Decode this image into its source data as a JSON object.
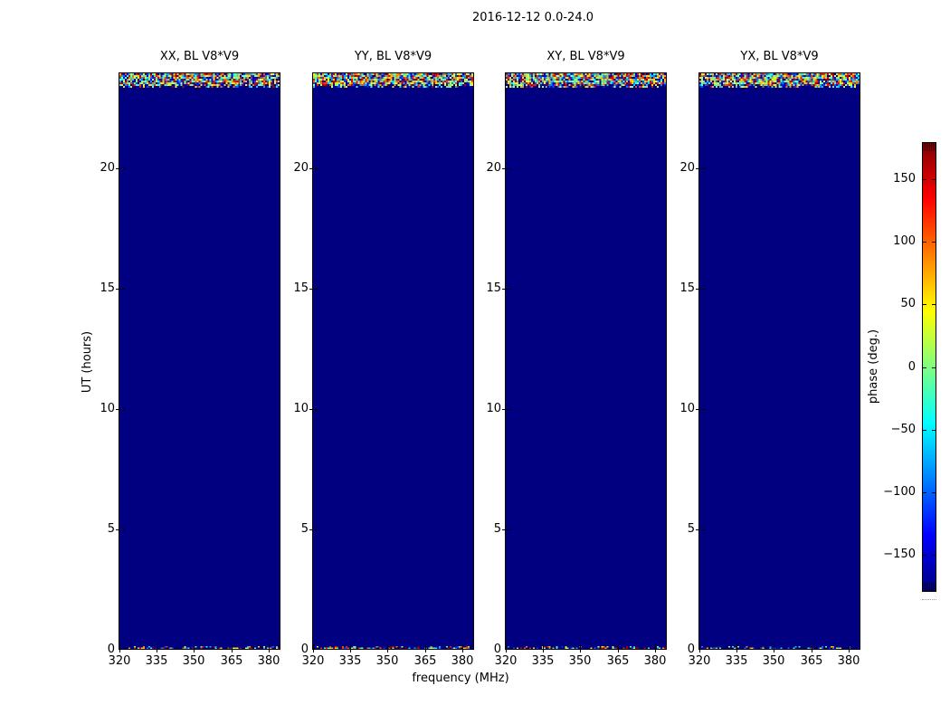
{
  "figure": {
    "title": "2016-12-12 0.0-24.0",
    "xlabel": "frequency (MHz)",
    "ylabel": "UT (hours)",
    "background": "#ffffff"
  },
  "panels": [
    {
      "title": "XX, BL V8*V9"
    },
    {
      "title": "YY, BL V8*V9"
    },
    {
      "title": "XY, BL V8*V9"
    },
    {
      "title": "YX, BL V8*V9"
    }
  ],
  "axes": {
    "x_tick_labels": [
      "320",
      "335",
      "350",
      "365",
      "380"
    ],
    "y_tick_labels": [
      "20",
      "15",
      "10",
      "5",
      "0"
    ]
  },
  "colorbar": {
    "label": "phase (deg.)",
    "tick_labels": [
      "150",
      "100",
      "50",
      "0",
      "−50",
      "−100",
      "−150"
    ],
    "colormap": "jet",
    "min_color": "#000080",
    "max_color": "#800000"
  },
  "chart_data": {
    "type": "heatmap",
    "title": "2016-12-12 0.0-24.0",
    "xlabel": "frequency (MHz)",
    "ylabel": "UT (hours)",
    "zlabel": "phase (deg.)",
    "xlim": [
      320,
      385
    ],
    "ylim": [
      0,
      24
    ],
    "zlim": [
      -180,
      180
    ],
    "x_ticks": [
      320,
      335,
      350,
      365,
      380
    ],
    "y_ticks": [
      0,
      5,
      10,
      15,
      20
    ],
    "colorbar_ticks": [
      150,
      100,
      50,
      0,
      -50,
      -100,
      -150
    ],
    "colormap": "jet",
    "grid": false,
    "subplots": [
      "XX, BL V8*V9",
      "YY, BL V8*V9",
      "XY, BL V8*V9",
      "YX, BL V8*V9"
    ],
    "content": "Four polarization waterfall panels (XX, YY, XY, YX) of baseline V8*V9. Phase is a uniform ~-180 deg (dark navy) over 320-385 MHz for UT ~0.1-23.4 h in every panel; a band of random phase noise covering all frequencies appears at UT ~23.4-24.0 h, and a thin random-phase row appears at UT ~0.0-0.1 h."
  }
}
